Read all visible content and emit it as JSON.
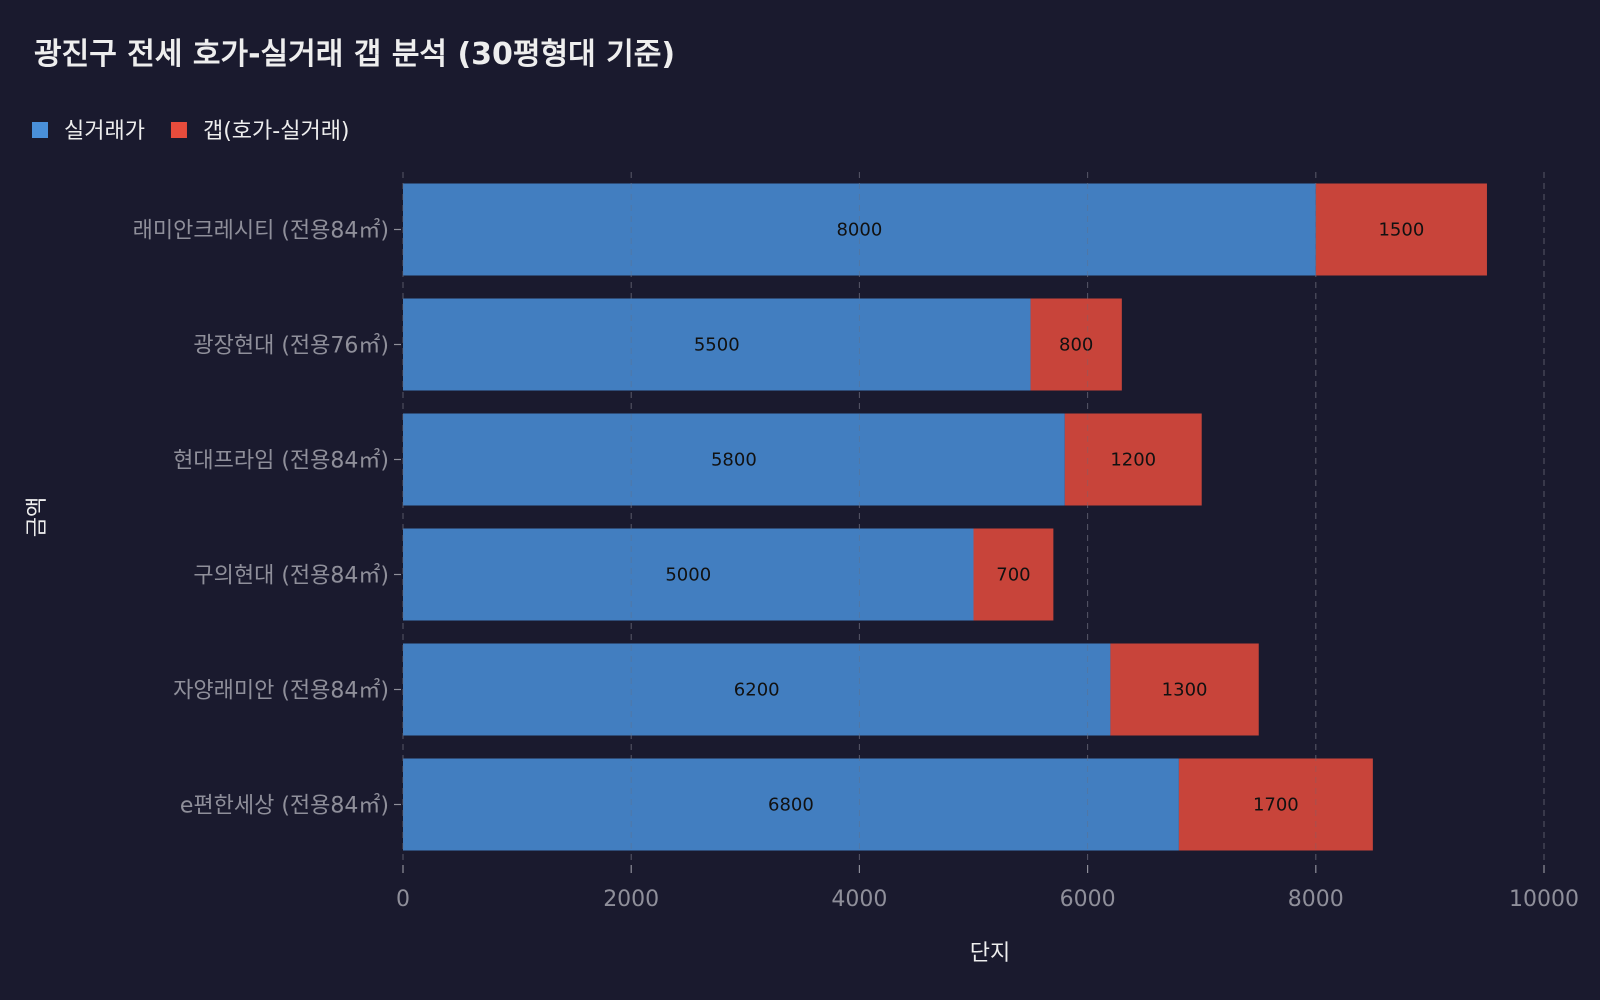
{
  "chart_data": {
    "type": "bar",
    "orientation": "horizontal",
    "stacked": true,
    "title": "광진구 전세 호가-실거래 갭 분석 (30평형대 기준)",
    "xlabel": "단지",
    "ylabel": "금액",
    "xlim": [
      0,
      10000
    ],
    "xticks": [
      0,
      2000,
      4000,
      6000,
      8000,
      10000
    ],
    "grid": "x dashed",
    "legend_placement": "top-left",
    "categories": [
      "래미안크레시티 (전용84㎡)",
      "광장현대 (전용76㎡)",
      "현대프라임 (전용84㎡)",
      "구의현대 (전용84㎡)",
      "자양래미안 (전용84㎡)",
      "e편한세상 (전용84㎡)"
    ],
    "series": [
      {
        "name": "실거래가",
        "color": "#4a90d9",
        "values": [
          8000,
          5500,
          5800,
          5000,
          6200,
          6800
        ]
      },
      {
        "name": "갭(호가-실거래)",
        "color": "#e74c3c",
        "values": [
          1500,
          800,
          1200,
          700,
          1300,
          1700
        ]
      }
    ],
    "background": "#1a1a2e"
  }
}
